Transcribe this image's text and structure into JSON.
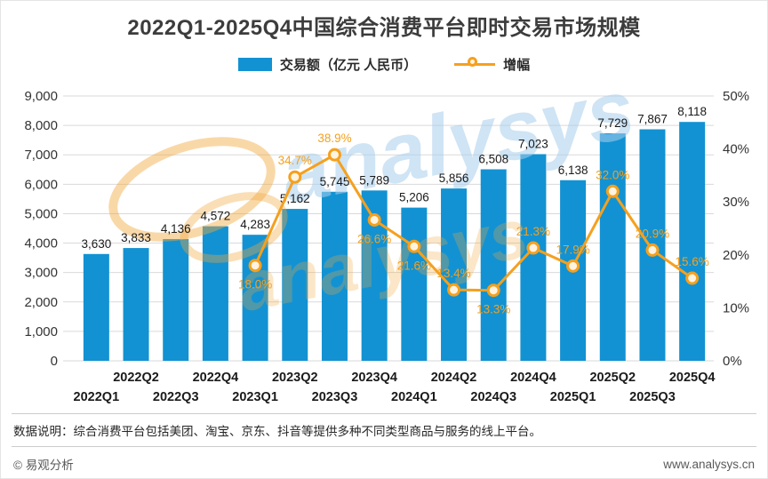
{
  "legend": {
    "bar_label": "交易额（亿元 人民币）",
    "line_label": "增幅"
  },
  "footer": {
    "note": "数据说明：综合消费平台包括美团、淘宝、京东、抖音等提供多种不同类型商品与服务的线上平台。",
    "copyright": "© 易观分析",
    "website": "www.analysys.cn"
  },
  "colors": {
    "bar": "#1292d2",
    "line": "#f5a01e",
    "grid": "#d9d9d9",
    "axis_text": "#333333",
    "bar_label_text": "#1a1a1a",
    "watermark_blue": "#a9cfec",
    "watermark_orange": "#f2a93e"
  },
  "watermark": {
    "latin": "analysys"
  },
  "chart_data": {
    "type": "bar+line",
    "title": "2022Q1-2025Q4中国综合消费平台即时交易市场规模",
    "grid": true,
    "legend_position": "top",
    "categories": [
      "2022Q1",
      "2022Q2",
      "2022Q3",
      "2022Q4",
      "2023Q1",
      "2023Q2",
      "2023Q3",
      "2023Q4",
      "2024Q1",
      "2024Q2",
      "2024Q3",
      "2024Q4",
      "2025Q1",
      "2025Q2",
      "2025Q3",
      "2025Q4"
    ],
    "series": [
      {
        "name": "交易额（亿元 人民币）",
        "type": "bar",
        "axis": "left",
        "values": [
          3630,
          3833,
          4136,
          4572,
          4283,
          5162,
          5745,
          5789,
          5206,
          5856,
          6508,
          7023,
          6138,
          7729,
          7867,
          8118
        ],
        "labels": [
          "3,630",
          "3,833",
          "4,136",
          "4,572",
          "4,283",
          "5,162",
          "5,745",
          "5,789",
          "5,206",
          "5,856",
          "6,508",
          "7,023",
          "6,138",
          "7,729",
          "7,867",
          "8,118"
        ]
      },
      {
        "name": "增幅",
        "type": "line",
        "axis": "right",
        "start_index": 4,
        "values": [
          18.0,
          34.7,
          38.9,
          26.6,
          21.6,
          13.4,
          13.3,
          21.3,
          17.9,
          32.0,
          20.9,
          15.6
        ],
        "labels": [
          "18.0%",
          "34.7%",
          "38.9%",
          "26.6%",
          "21.6%",
          "13.4%",
          "13.3%",
          "21.3%",
          "17.9%",
          "32.0%",
          "20.9%",
          "15.6%"
        ],
        "label_positions": [
          "below",
          "above",
          "above",
          "below",
          "below",
          "above",
          "below",
          "above",
          "above",
          "above",
          "above",
          "above"
        ]
      }
    ],
    "left_axis": {
      "min": 0,
      "max": 9000,
      "step": 1000,
      "ticks": [
        "9,000",
        "8,000",
        "7,000",
        "6,000",
        "5,000",
        "4,000",
        "3,000",
        "2,000",
        "1,000",
        "0"
      ]
    },
    "right_axis": {
      "min": 0,
      "max": 50,
      "step": 10,
      "ticks": [
        "50%",
        "40%",
        "30%",
        "20%",
        "10%",
        "0%"
      ]
    }
  }
}
